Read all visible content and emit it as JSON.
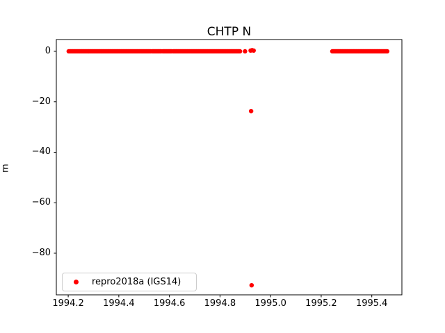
{
  "figure": {
    "title": "CHTP N",
    "ylabel": "m"
  },
  "legend": {
    "label": "repro2018a (IGS14)",
    "marker_color": "#ff0000"
  },
  "chart_data": {
    "type": "scatter",
    "title": "CHTP N",
    "xlabel": "",
    "ylabel": "m",
    "xlim": [
      1994.153,
      1995.519
    ],
    "ylim": [
      -96.5,
      4.67
    ],
    "grid": false,
    "legend_position": "lower left",
    "background": "#ffffff",
    "axes_color": "#000000",
    "xticks": [
      {
        "value": 1994.2,
        "label": "1994.2"
      },
      {
        "value": 1994.4,
        "label": "1994.4"
      },
      {
        "value": 1994.6,
        "label": "1994.6"
      },
      {
        "value": 1994.8,
        "label": "1994.8"
      },
      {
        "value": 1995.0,
        "label": "1995.0"
      },
      {
        "value": 1995.2,
        "label": "1995.2"
      },
      {
        "value": 1995.4,
        "label": "1995.4"
      }
    ],
    "yticks": [
      {
        "value": 0,
        "label": "0"
      },
      {
        "value": -20,
        "label": "−20"
      },
      {
        "value": -40,
        "label": "−40"
      },
      {
        "value": -60,
        "label": "−60"
      },
      {
        "value": -80,
        "label": "−80"
      }
    ],
    "series": [
      {
        "name": "repro2018a (IGS14)",
        "color": "#ff0000",
        "marker": "point",
        "marker_radius_px": 3.2,
        "point_step": 0.004,
        "dense_runs": [
          {
            "x_start": 1994.202,
            "x_end": 1994.525,
            "y": 0
          },
          {
            "x_start": 1994.532,
            "x_end": 1994.567,
            "y": 0
          },
          {
            "x_start": 1994.574,
            "x_end": 1994.608,
            "y": 0
          },
          {
            "x_start": 1994.615,
            "x_end": 1994.879,
            "y": 0
          },
          {
            "x_start": 1995.244,
            "x_end": 1995.461,
            "y": 0
          }
        ],
        "isolated_points": [
          {
            "x": 1994.899,
            "y": 0
          },
          {
            "x": 1994.921,
            "y": 0.3
          },
          {
            "x": 1994.927,
            "y": 0.45
          },
          {
            "x": 1994.933,
            "y": 0.3
          },
          {
            "x": 1994.923,
            "y": -23.7
          },
          {
            "x": 1994.925,
            "y": -92.7
          }
        ]
      }
    ]
  }
}
